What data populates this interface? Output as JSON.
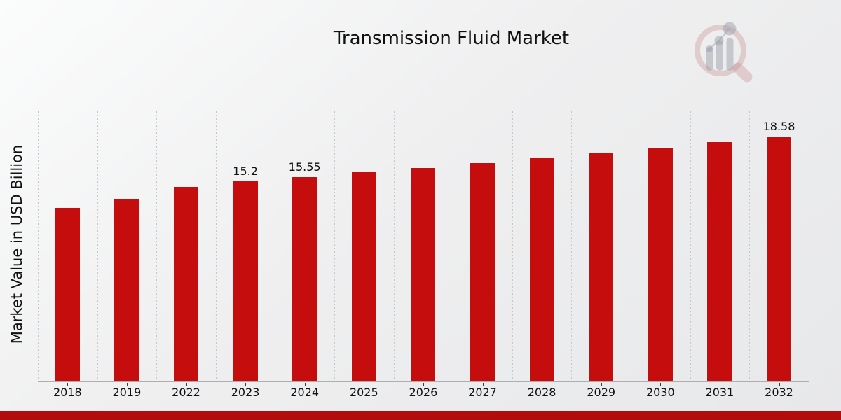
{
  "page_title": "Transmission Fluid Market",
  "branding": {
    "logo_name": "market-research-future-watermark",
    "bar_red": "#c60d0e",
    "banner_red": "#b20c0d"
  },
  "chart_data": {
    "type": "bar",
    "title": "Transmission Fluid Market",
    "xlabel": "",
    "ylabel": "Market Value in USD Billion",
    "categories": [
      "2018",
      "2019",
      "2022",
      "2023",
      "2024",
      "2025",
      "2026",
      "2027",
      "2028",
      "2029",
      "2030",
      "2031",
      "2032"
    ],
    "values": [
      13.2,
      13.9,
      14.8,
      15.2,
      15.55,
      15.9,
      16.2,
      16.6,
      16.95,
      17.35,
      17.75,
      18.2,
      18.58
    ],
    "point_labels": [
      "",
      "",
      "",
      "15.2",
      "15.55",
      "",
      "",
      "",
      "",
      "",
      "",
      "",
      "18.58"
    ],
    "unit": "USD Billion",
    "ylim": [
      0,
      20.4
    ],
    "grid": "vertical-dotted",
    "legend_position": "none",
    "bar_color": "#c60d0e"
  }
}
